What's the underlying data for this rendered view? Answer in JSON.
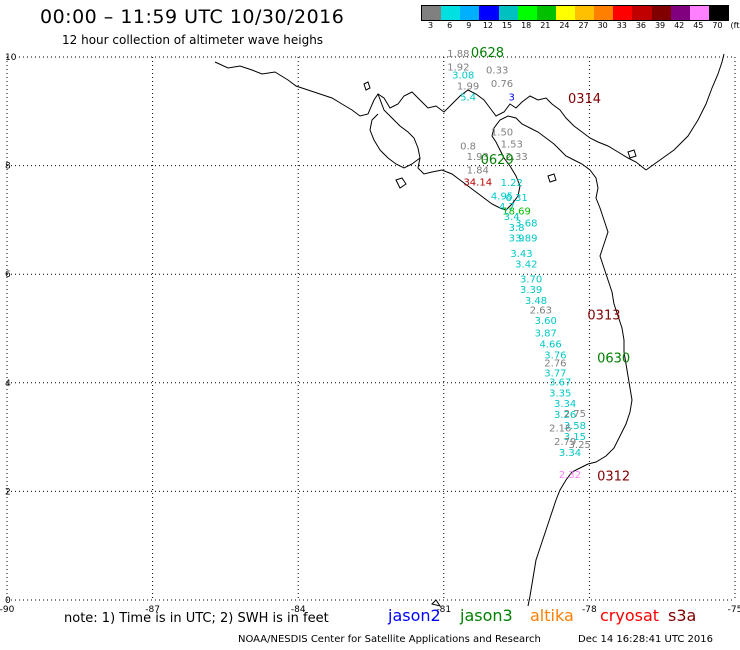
{
  "title": "00:00 – 11:59 UTC 10/30/2016",
  "subtitle": "12 hour collection of altimeter wave heighs",
  "colorbar": {
    "labels": [
      "3",
      "6",
      "9",
      "12",
      "15",
      "18",
      "21",
      "24",
      "27",
      "30",
      "33",
      "36",
      "39",
      "42",
      "45",
      "70",
      "(ft)"
    ],
    "colors": [
      "#808080",
      "#00e0e0",
      "#00b0ff",
      "#0000ff",
      "#00c0c0",
      "#00ff00",
      "#00c000",
      "#ffff00",
      "#ffc000",
      "#ff8000",
      "#ff0000",
      "#c00000",
      "#800000",
      "#800080",
      "#ff80ff",
      "#000000"
    ]
  },
  "axes": {
    "x_ticks": [
      "-90",
      "-87",
      "-84",
      "-81",
      "-78",
      "-75"
    ],
    "y_ticks": [
      "10",
      "8",
      "6",
      "4",
      "2",
      "0"
    ],
    "x_range": [
      -90,
      -75
    ],
    "y_range": [
      0,
      10
    ]
  },
  "satellites": [
    {
      "name": "jason2",
      "color": "#0000ff"
    },
    {
      "name": "jason3",
      "color": "#008000"
    },
    {
      "name": "altika",
      "color": "#ff8000"
    },
    {
      "name": "cryosat",
      "color": "#ff0000"
    },
    {
      "name": "s3a",
      "color": "#800000"
    }
  ],
  "note": "note: 1) Time is in UTC; 2) SWH is in feet",
  "credit": "NOAA/NESDIS Center for Satellite Applications and Research",
  "timestamp": "Dec 14 16:28:41 UTC 2016",
  "pass_labels": [
    {
      "text": "0628",
      "lon": -80.1,
      "lat": 10.0,
      "color": "#008000"
    },
    {
      "text": "0314",
      "lon": -78.1,
      "lat": 9.15,
      "color": "#800000"
    },
    {
      "text": "0629",
      "lon": -79.9,
      "lat": 8.03,
      "color": "#008000"
    },
    {
      "text": "0313",
      "lon": -77.7,
      "lat": 5.17,
      "color": "#800000"
    },
    {
      "text": "0630",
      "lon": -77.5,
      "lat": 4.37,
      "color": "#008000"
    },
    {
      "text": "0312",
      "lon": -77.5,
      "lat": 2.2,
      "color": "#800000"
    }
  ],
  "wave_heights": [
    {
      "text": "1.88",
      "lon": -80.7,
      "lat": 10.0,
      "color": "#808080"
    },
    {
      "text": "1.92",
      "lon": -80.7,
      "lat": 9.75,
      "color": "#808080"
    },
    {
      "text": "0.33",
      "lon": -79.9,
      "lat": 9.7,
      "color": "#808080"
    },
    {
      "text": "3.08",
      "lon": -80.6,
      "lat": 9.6,
      "color": "#00c8c8"
    },
    {
      "text": "0.76",
      "lon": -79.8,
      "lat": 9.45,
      "color": "#808080"
    },
    {
      "text": "1.99",
      "lon": -80.5,
      "lat": 9.4,
      "color": "#808080"
    },
    {
      "text": "5.4",
      "lon": -80.5,
      "lat": 9.2,
      "color": "#00c8c8"
    },
    {
      "text": "3",
      "lon": -79.6,
      "lat": 9.2,
      "color": "#0000ff"
    },
    {
      "text": "1.50",
      "lon": -79.8,
      "lat": 8.55,
      "color": "#808080"
    },
    {
      "text": "0.8",
      "lon": -80.5,
      "lat": 8.3,
      "color": "#808080"
    },
    {
      "text": "1.53",
      "lon": -79.6,
      "lat": 8.33,
      "color": "#808080"
    },
    {
      "text": "1.93",
      "lon": -80.3,
      "lat": 8.1,
      "color": "#808080"
    },
    {
      "text": "2.33",
      "lon": -79.5,
      "lat": 8.1,
      "color": "#808080"
    },
    {
      "text": "1.84",
      "lon": -80.3,
      "lat": 7.85,
      "color": "#808080"
    },
    {
      "text": "34.14",
      "lon": -80.3,
      "lat": 7.63,
      "color": "#c00000"
    },
    {
      "text": "1.22",
      "lon": -79.6,
      "lat": 7.62,
      "color": "#00c8c8"
    },
    {
      "text": "4.95",
      "lon": -79.8,
      "lat": 7.38,
      "color": "#00c8c8"
    },
    {
      "text": "6.31",
      "lon": -79.5,
      "lat": 7.35,
      "color": "#00c8c8"
    },
    {
      "text": "4.7",
      "lon": -79.7,
      "lat": 7.18,
      "color": "#00c8c8"
    },
    {
      "text": "18.69",
      "lon": -79.5,
      "lat": 7.1,
      "color": "#00c000"
    },
    {
      "text": "3.4",
      "lon": -79.6,
      "lat": 7.0,
      "color": "#00c8c8"
    },
    {
      "text": "3.68",
      "lon": -79.3,
      "lat": 6.88,
      "color": "#00c8c8"
    },
    {
      "text": "3.8",
      "lon": -79.5,
      "lat": 6.8,
      "color": "#00c8c8"
    },
    {
      "text": "3.9",
      "lon": -79.5,
      "lat": 6.6,
      "color": "#00c8c8"
    },
    {
      "text": "3.89",
      "lon": -79.3,
      "lat": 6.6,
      "color": "#00c8c8"
    },
    {
      "text": "3.43",
      "lon": -79.4,
      "lat": 6.32,
      "color": "#00c8c8"
    },
    {
      "text": "3.42",
      "lon": -79.3,
      "lat": 6.12,
      "color": "#00c8c8"
    },
    {
      "text": "3.70",
      "lon": -79.2,
      "lat": 5.85,
      "color": "#00c8c8"
    },
    {
      "text": "3.39",
      "lon": -79.2,
      "lat": 5.65,
      "color": "#00c8c8"
    },
    {
      "text": "3.48",
      "lon": -79.1,
      "lat": 5.45,
      "color": "#00c8c8"
    },
    {
      "text": "2.63",
      "lon": -79.0,
      "lat": 5.28,
      "color": "#808080"
    },
    {
      "text": "3.60",
      "lon": -78.9,
      "lat": 5.08,
      "color": "#00c8c8"
    },
    {
      "text": "3.87",
      "lon": -78.9,
      "lat": 4.85,
      "color": "#00c8c8"
    },
    {
      "text": "4.66",
      "lon": -78.8,
      "lat": 4.65,
      "color": "#00c8c8"
    },
    {
      "text": "3.76",
      "lon": -78.7,
      "lat": 4.45,
      "color": "#00c8c8"
    },
    {
      "text": "2.76",
      "lon": -78.7,
      "lat": 4.3,
      "color": "#808080"
    },
    {
      "text": "3.77",
      "lon": -78.7,
      "lat": 4.12,
      "color": "#00c8c8"
    },
    {
      "text": "3.67",
      "lon": -78.6,
      "lat": 3.95,
      "color": "#00c8c8"
    },
    {
      "text": "3.35",
      "lon": -78.6,
      "lat": 3.75,
      "color": "#00c8c8"
    },
    {
      "text": "3.34",
      "lon": -78.5,
      "lat": 3.55,
      "color": "#00c8c8"
    },
    {
      "text": "3.26",
      "lon": -78.5,
      "lat": 3.35,
      "color": "#00c8c8"
    },
    {
      "text": "2.75",
      "lon": -78.3,
      "lat": 3.37,
      "color": "#808080"
    },
    {
      "text": "3.58",
      "lon": -78.3,
      "lat": 3.15,
      "color": "#00c8c8"
    },
    {
      "text": "2.16",
      "lon": -78.6,
      "lat": 3.1,
      "color": "#808080"
    },
    {
      "text": "3.15",
      "lon": -78.3,
      "lat": 2.95,
      "color": "#00c8c8"
    },
    {
      "text": "2.79",
      "lon": -78.5,
      "lat": 2.85,
      "color": "#808080"
    },
    {
      "text": "3.25",
      "lon": -78.2,
      "lat": 2.8,
      "color": "#808080"
    },
    {
      "text": "3.34",
      "lon": -78.4,
      "lat": 2.65,
      "color": "#00c8c8"
    },
    {
      "text": "2.32",
      "lon": -78.4,
      "lat": 2.25,
      "color": "#ff80ff"
    }
  ]
}
